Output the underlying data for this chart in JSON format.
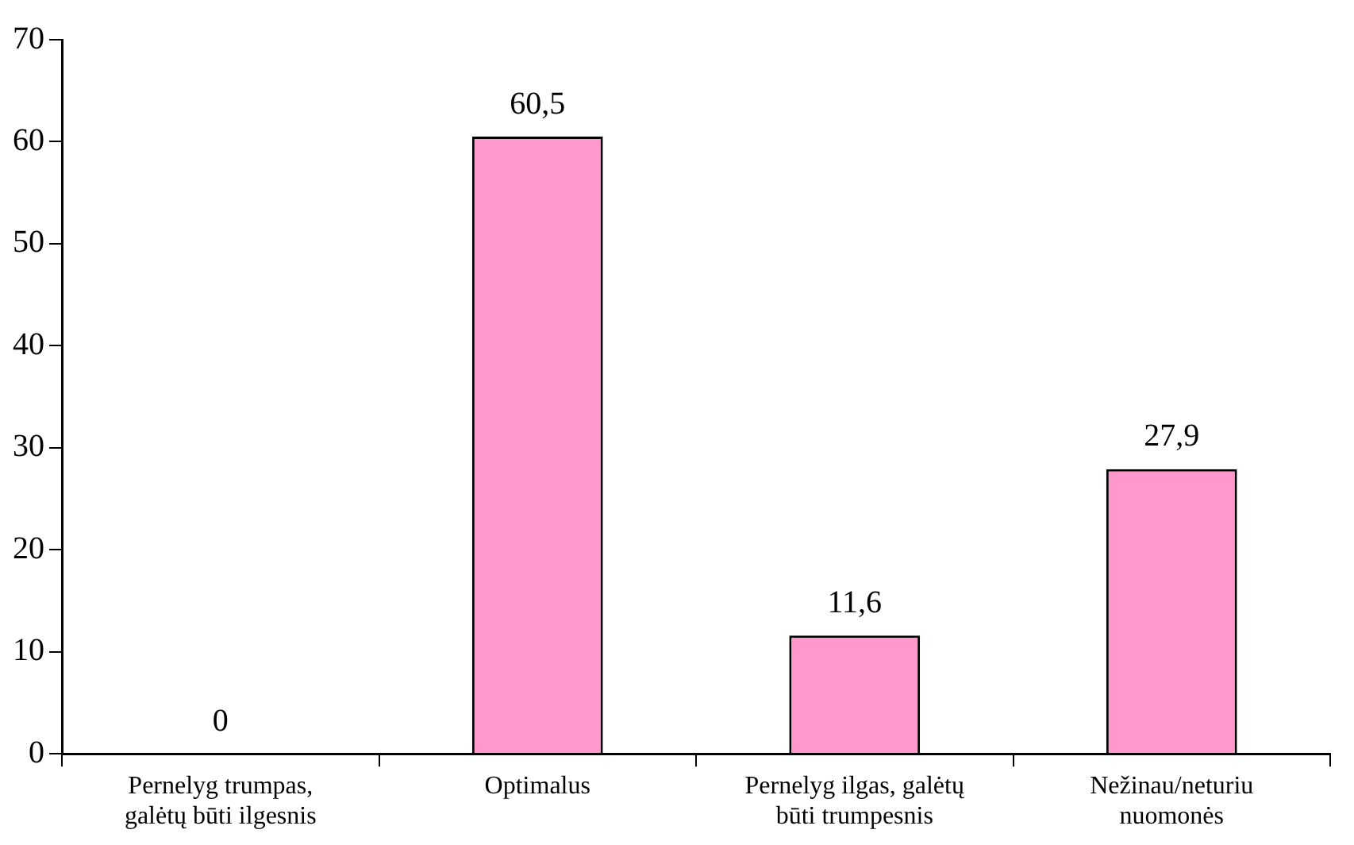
{
  "chart_data": {
    "type": "bar",
    "categories": [
      "Pernelyg trumpas, galėtų būti ilgesnis",
      "Optimalus",
      "Pernelyg ilgas, galėtų būti trumpesnis",
      "Nežinau/neturiu nuomonės"
    ],
    "values": [
      0,
      60.5,
      11.6,
      27.9
    ],
    "value_labels": [
      "0",
      "60,5",
      "11,6",
      "27,9"
    ],
    "color": "#ff99cc",
    "ylim": [
      0,
      70
    ],
    "yticks": [
      0,
      10,
      20,
      30,
      40,
      50,
      60,
      70
    ],
    "grid": false,
    "legend": false
  }
}
